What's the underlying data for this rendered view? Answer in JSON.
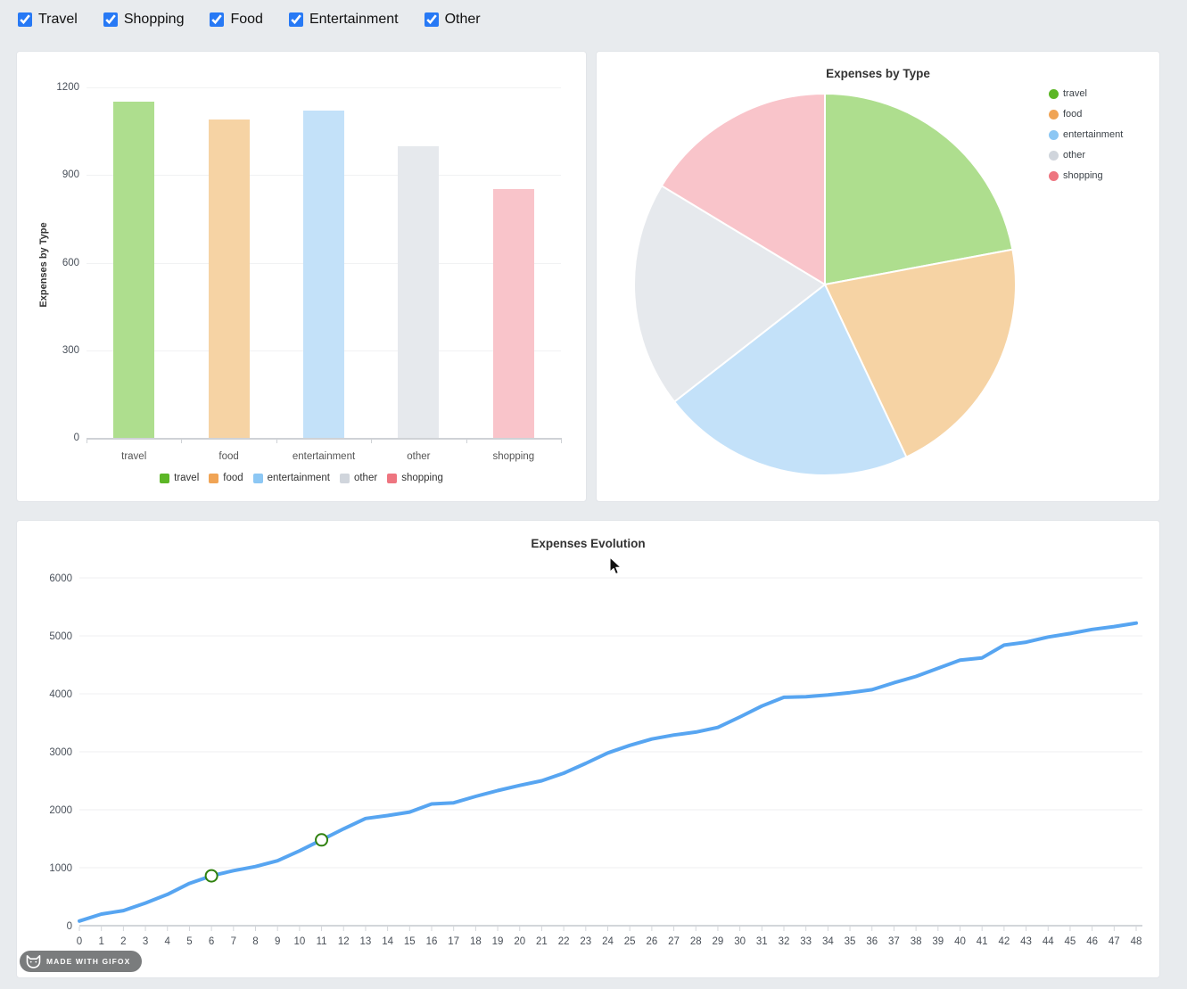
{
  "filters": {
    "items": [
      {
        "label": "Travel",
        "checked": true
      },
      {
        "label": "Shopping",
        "checked": true
      },
      {
        "label": "Food",
        "checked": true
      },
      {
        "label": "Entertainment",
        "checked": true
      },
      {
        "label": "Other",
        "checked": true
      }
    ]
  },
  "colors": {
    "accent": "#2779f5",
    "line": "#57a5f1",
    "marker_ring": "#2f810e",
    "series": {
      "travel": {
        "legend": "#5cb626",
        "fill": "#aede8e"
      },
      "food": {
        "legend": "#f0a455",
        "fill": "#f6d3a4"
      },
      "entertainment": {
        "legend": "#8cc7f4",
        "fill": "#c3e1f9"
      },
      "other": {
        "legend": "#d0d5dc",
        "fill": "#e6e9ed"
      },
      "shopping": {
        "legend": "#ee7580",
        "fill": "#f9c4ca"
      }
    }
  },
  "chart_data": [
    {
      "id": "expenses-bar",
      "type": "bar",
      "title": "",
      "ylabel": "Expenses by Type",
      "categories": [
        "travel",
        "food",
        "entertainment",
        "other",
        "shopping"
      ],
      "values": [
        1150,
        1090,
        1120,
        1000,
        852
      ],
      "yticks": [
        0,
        300,
        600,
        900,
        1200
      ],
      "ylim": [
        0,
        1320
      ],
      "grid": true,
      "legend": [
        "travel",
        "food",
        "entertainment",
        "other",
        "shopping"
      ],
      "legend_position": "bottom"
    },
    {
      "id": "expenses-pie",
      "type": "pie",
      "title": "Expenses by Type",
      "labels": [
        "travel",
        "food",
        "entertainment",
        "other",
        "shopping"
      ],
      "values": [
        1150,
        1090,
        1120,
        1000,
        852
      ],
      "start_angle_deg": -90,
      "direction": "clockwise",
      "legend": [
        "travel",
        "food",
        "entertainment",
        "other",
        "shopping"
      ],
      "legend_position": "top-right"
    },
    {
      "id": "expenses-evolution-line",
      "type": "line",
      "title": "Expenses Evolution",
      "x": [
        0,
        1,
        2,
        3,
        4,
        5,
        6,
        7,
        8,
        9,
        10,
        11,
        12,
        13,
        14,
        15,
        16,
        17,
        18,
        19,
        20,
        21,
        22,
        23,
        24,
        25,
        26,
        27,
        28,
        29,
        30,
        31,
        32,
        33,
        34,
        35,
        36,
        37,
        38,
        39,
        40,
        41,
        42,
        43,
        44,
        45,
        46,
        47,
        48
      ],
      "y": [
        80,
        200,
        260,
        390,
        540,
        730,
        860,
        950,
        1020,
        1120,
        1290,
        1480,
        1670,
        1850,
        1900,
        1960,
        2100,
        2120,
        2230,
        2330,
        2420,
        2500,
        2630,
        2800,
        2980,
        3110,
        3220,
        3290,
        3340,
        3420,
        3600,
        3790,
        3940,
        3950,
        3980,
        4020,
        4070,
        4190,
        4300,
        4440,
        4580,
        4620,
        4840,
        4890,
        4980,
        5040,
        5110,
        5160,
        5220
      ],
      "yticks": [
        0,
        1000,
        2000,
        3000,
        4000,
        5000,
        6000
      ],
      "ylim": [
        0,
        6200
      ],
      "grid": true,
      "markers_at_x": [
        6,
        11
      ],
      "marker_values": [
        860,
        1480
      ]
    }
  ],
  "badge": {
    "text": "MADE WITH GIFOX"
  }
}
